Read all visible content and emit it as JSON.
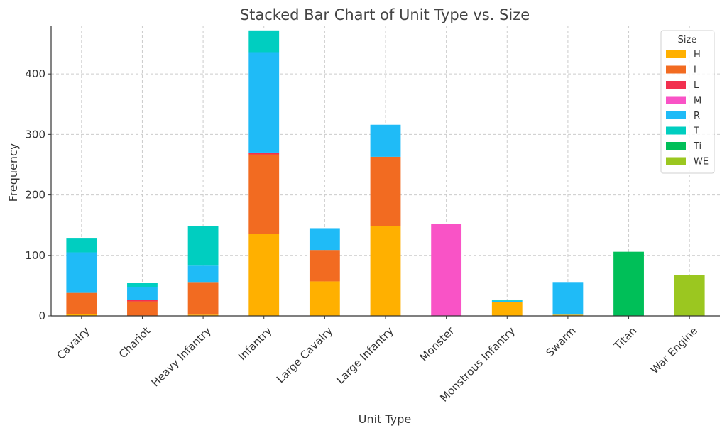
{
  "chart_data": {
    "type": "bar",
    "stacked": true,
    "title": "Stacked Bar Chart of Unit Type vs. Size",
    "xlabel": "Unit Type",
    "ylabel": "Frequency",
    "ylim": [
      0,
      480
    ],
    "yticks": [
      0,
      100,
      200,
      300,
      400
    ],
    "grid": true,
    "legend_title": "Size",
    "legend_position": "top-right",
    "categories": [
      "Cavalry",
      "Chariot",
      "Heavy Infantry",
      "Infantry",
      "Large Cavalry",
      "Large Infantry",
      "Monster",
      "Monstrous Infantry",
      "Swarm",
      "Titan",
      "War Engine"
    ],
    "series": [
      {
        "name": "H",
        "color": "#FFB000",
        "values": [
          3,
          0,
          2,
          135,
          57,
          148,
          0,
          23,
          2,
          0,
          0
        ]
      },
      {
        "name": "I",
        "color": "#F26B21",
        "values": [
          35,
          24,
          54,
          132,
          52,
          115,
          0,
          0,
          0,
          0,
          0
        ]
      },
      {
        "name": "L",
        "color": "#F2304F",
        "values": [
          0,
          2,
          0,
          3,
          0,
          0,
          0,
          0,
          0,
          0,
          0
        ]
      },
      {
        "name": "M",
        "color": "#F953C6",
        "values": [
          0,
          0,
          0,
          0,
          0,
          0,
          152,
          0,
          0,
          0,
          0
        ]
      },
      {
        "name": "R",
        "color": "#1FBBF7",
        "values": [
          67,
          22,
          27,
          166,
          36,
          53,
          0,
          2,
          54,
          0,
          0
        ]
      },
      {
        "name": "T",
        "color": "#00CEC0",
        "values": [
          24,
          7,
          66,
          36,
          0,
          0,
          0,
          2,
          0,
          0,
          0
        ]
      },
      {
        "name": "Ti",
        "color": "#00BF58",
        "values": [
          0,
          0,
          0,
          0,
          0,
          0,
          0,
          0,
          0,
          106,
          0
        ]
      },
      {
        "name": "WE",
        "color": "#9BC720",
        "values": [
          0,
          0,
          0,
          0,
          0,
          0,
          0,
          0,
          0,
          0,
          68
        ]
      }
    ]
  }
}
